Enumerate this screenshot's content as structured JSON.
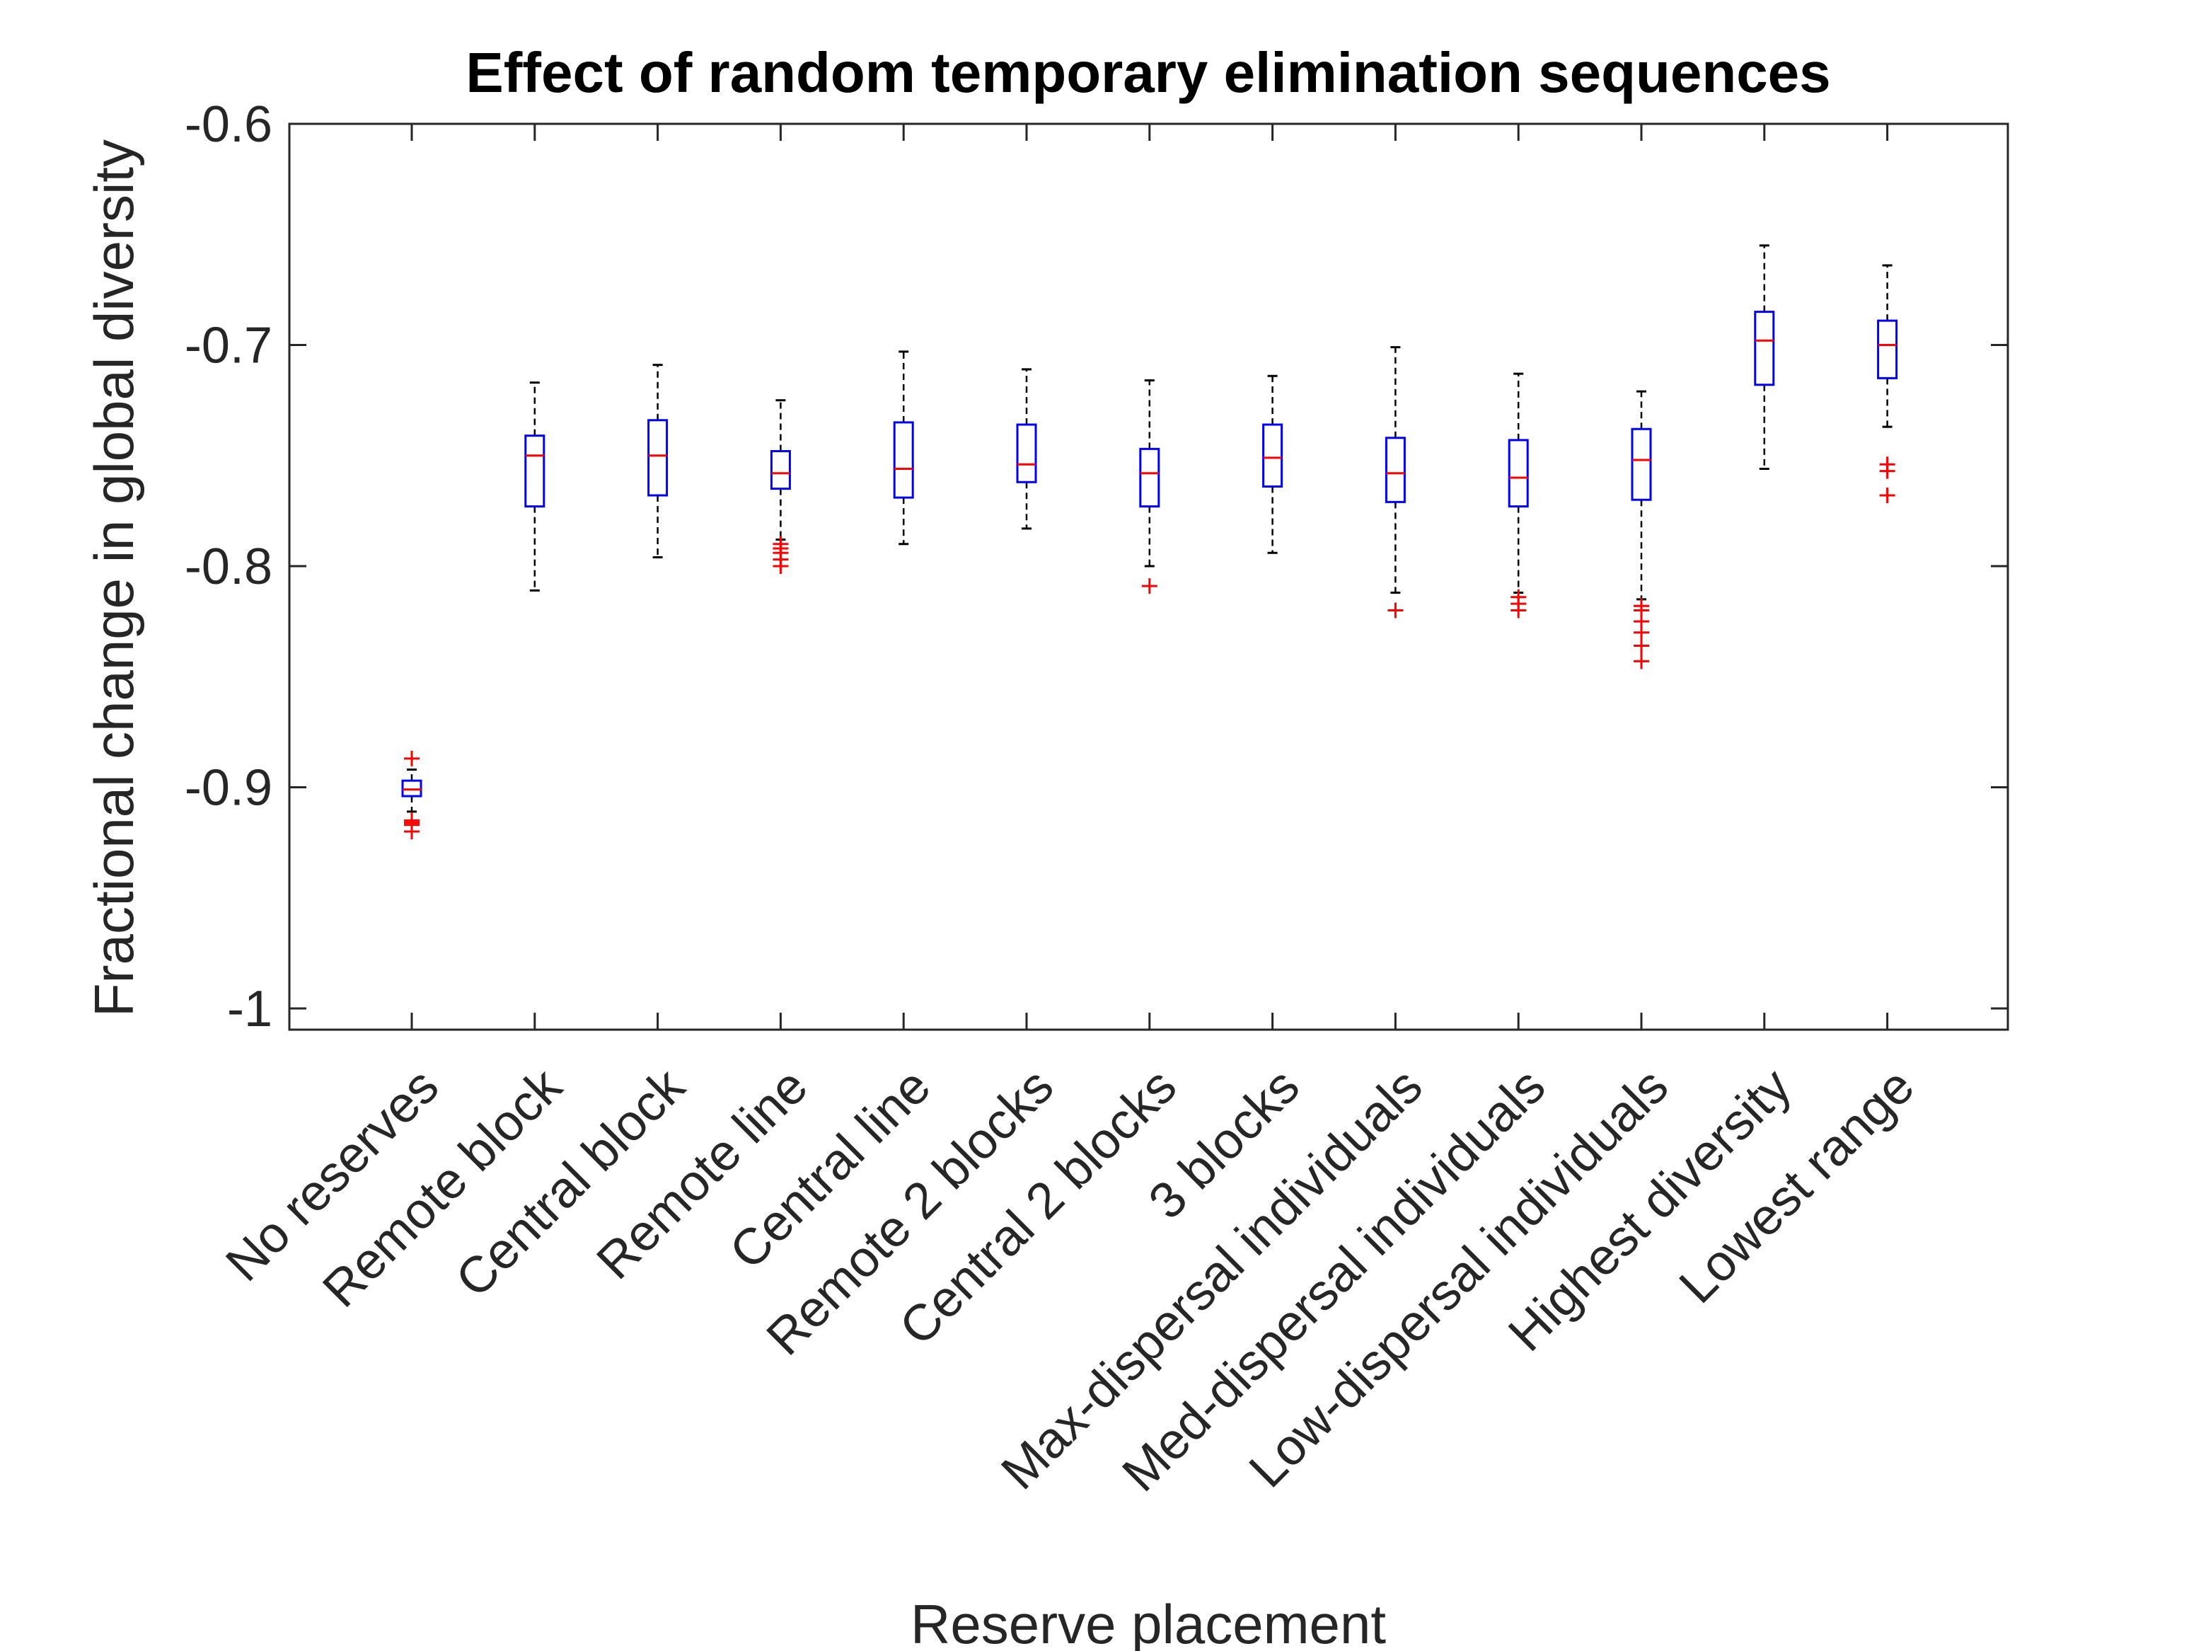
{
  "chart_data": {
    "type": "box",
    "title": "Effect of random temporary elimination sequences",
    "xlabel": "Reserve placement",
    "ylabel": "Fractional change in global diversity",
    "ylim": [
      -1.0,
      -0.6
    ],
    "yticks": [
      -1.0,
      -0.9,
      -0.8,
      -0.7,
      -0.6
    ],
    "ytick_labels": [
      "-1",
      "-0.9",
      "-0.8",
      "-0.7",
      "-0.6"
    ],
    "grid": false,
    "colors": {
      "box": "#0000ff",
      "median": "#ff0000",
      "whisker": "#000000",
      "outlier": "#ff0000",
      "axis": "#262626"
    },
    "categories": [
      "No reserves",
      "Remote block",
      "Central block",
      "Remote line",
      "Central line",
      "Remote 2 blocks",
      "Central 2 blocks",
      "3 blocks",
      "Max-dispersal individuals",
      "Med-dispersal individuals",
      "Low-dispersal individuals",
      "Highest diversity",
      "Lowest range"
    ],
    "boxes": [
      {
        "q1": -0.904,
        "median": -0.901,
        "q3": -0.897,
        "whisker_low": -0.911,
        "whisker_high": -0.892,
        "outliers": [
          -0.887,
          -0.915,
          -0.916,
          -0.917,
          -0.92
        ]
      },
      {
        "q1": -0.773,
        "median": -0.75,
        "q3": -0.741,
        "whisker_low": -0.811,
        "whisker_high": -0.717,
        "outliers": []
      },
      {
        "q1": -0.768,
        "median": -0.75,
        "q3": -0.734,
        "whisker_low": -0.796,
        "whisker_high": -0.709,
        "outliers": []
      },
      {
        "q1": -0.765,
        "median": -0.758,
        "q3": -0.748,
        "whisker_low": -0.788,
        "whisker_high": -0.725,
        "outliers": [
          -0.79,
          -0.792,
          -0.794,
          -0.797,
          -0.8
        ]
      },
      {
        "q1": -0.769,
        "median": -0.756,
        "q3": -0.735,
        "whisker_low": -0.79,
        "whisker_high": -0.703,
        "outliers": []
      },
      {
        "q1": -0.762,
        "median": -0.754,
        "q3": -0.736,
        "whisker_low": -0.783,
        "whisker_high": -0.711,
        "outliers": []
      },
      {
        "q1": -0.773,
        "median": -0.758,
        "q3": -0.747,
        "whisker_low": -0.8,
        "whisker_high": -0.716,
        "outliers": [
          -0.809
        ]
      },
      {
        "q1": -0.764,
        "median": -0.751,
        "q3": -0.736,
        "whisker_low": -0.794,
        "whisker_high": -0.714,
        "outliers": []
      },
      {
        "q1": -0.771,
        "median": -0.758,
        "q3": -0.742,
        "whisker_low": -0.812,
        "whisker_high": -0.701,
        "outliers": [
          -0.82
        ]
      },
      {
        "q1": -0.773,
        "median": -0.76,
        "q3": -0.743,
        "whisker_low": -0.812,
        "whisker_high": -0.713,
        "outliers": [
          -0.814,
          -0.817,
          -0.82
        ]
      },
      {
        "q1": -0.77,
        "median": -0.752,
        "q3": -0.738,
        "whisker_low": -0.815,
        "whisker_high": -0.721,
        "outliers": [
          -0.818,
          -0.82,
          -0.825,
          -0.83,
          -0.836,
          -0.843
        ]
      },
      {
        "q1": -0.718,
        "median": -0.698,
        "q3": -0.685,
        "whisker_low": -0.756,
        "whisker_high": -0.655,
        "outliers": []
      },
      {
        "q1": -0.715,
        "median": -0.7,
        "q3": -0.689,
        "whisker_low": -0.737,
        "whisker_high": -0.664,
        "outliers": [
          -0.754,
          -0.757,
          -0.768
        ]
      }
    ]
  }
}
